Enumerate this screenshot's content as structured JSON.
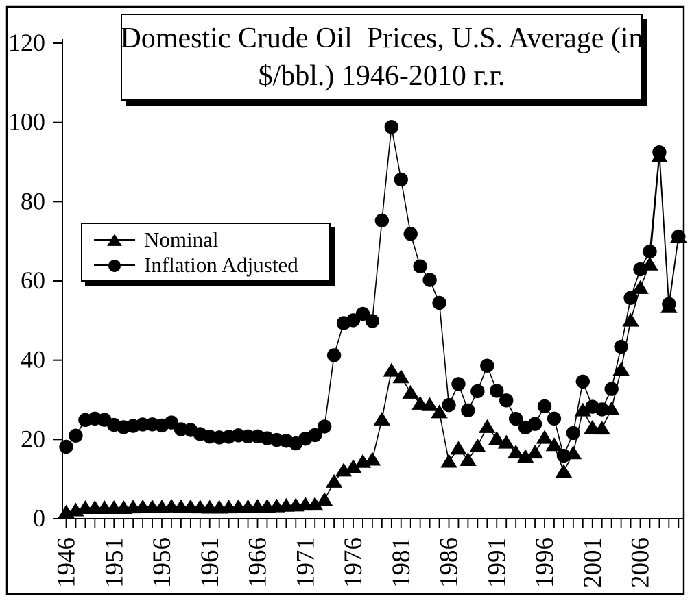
{
  "title": {
    "line1": "Domestic Crude Oil  Prices, U.S. Average (in",
    "line2": "$/bbl.) 1946-2010 г.г."
  },
  "legend": {
    "items": [
      {
        "label": "Nominal",
        "marker": "triangle"
      },
      {
        "label": "Inflation Adjusted",
        "marker": "circle"
      }
    ]
  },
  "chart_data": {
    "type": "line",
    "title": "Domestic Crude Oil  Prices, U.S. Average (in $/bbl.) 1946-2010 г.г.",
    "xlabel": "",
    "ylabel": "",
    "xlim": [
      1946,
      2010
    ],
    "ylim": [
      0,
      120
    ],
    "grid": false,
    "legend_position": "middle-left",
    "colors": {
      "foreground": "#000000",
      "background": "#ffffff"
    },
    "y_ticks": [
      0,
      20,
      40,
      60,
      80,
      100,
      120
    ],
    "x_tick_label_years": [
      1946,
      1951,
      1956,
      1961,
      1966,
      1971,
      1976,
      1981,
      1986,
      1991,
      1996,
      2001,
      2006
    ],
    "x": [
      1946,
      1947,
      1948,
      1949,
      1950,
      1951,
      1952,
      1953,
      1954,
      1955,
      1956,
      1957,
      1958,
      1959,
      1960,
      1961,
      1962,
      1963,
      1964,
      1965,
      1966,
      1967,
      1968,
      1969,
      1970,
      1971,
      1972,
      1973,
      1974,
      1975,
      1976,
      1977,
      1978,
      1979,
      1980,
      1981,
      1982,
      1983,
      1984,
      1985,
      1986,
      1987,
      1988,
      1989,
      1990,
      1991,
      1992,
      1993,
      1994,
      1995,
      1996,
      1997,
      1998,
      1999,
      2000,
      2001,
      2002,
      2003,
      2004,
      2005,
      2006,
      2007,
      2008,
      2009,
      2010
    ],
    "series": [
      {
        "name": "Nominal",
        "marker": "triangle",
        "values": [
          1.63,
          2.16,
          2.77,
          2.77,
          2.77,
          2.77,
          2.77,
          2.92,
          2.99,
          2.93,
          2.94,
          3.14,
          3.0,
          3.0,
          2.91,
          2.85,
          2.85,
          2.91,
          3.0,
          3.01,
          3.1,
          3.12,
          3.18,
          3.32,
          3.39,
          3.6,
          3.6,
          4.75,
          9.35,
          12.21,
          13.1,
          14.4,
          14.95,
          25.1,
          37.42,
          35.75,
          31.83,
          29.08,
          28.75,
          26.92,
          14.44,
          17.75,
          14.87,
          18.33,
          23.19,
          20.2,
          19.25,
          16.75,
          15.66,
          16.75,
          20.46,
          18.64,
          11.91,
          16.56,
          27.39,
          23.0,
          22.81,
          27.69,
          37.66,
          50.04,
          58.3,
          64.2,
          91.48,
          53.48,
          71.21
        ]
      },
      {
        "name": "Inflation Adjusted",
        "marker": "circle",
        "values": [
          18.17,
          20.97,
          24.93,
          25.27,
          24.98,
          23.67,
          23.09,
          23.41,
          23.79,
          23.8,
          23.52,
          24.29,
          22.58,
          22.4,
          21.37,
          20.72,
          20.51,
          20.67,
          21.04,
          20.77,
          20.79,
          20.3,
          19.87,
          19.67,
          19.0,
          20.2,
          21.1,
          23.27,
          41.25,
          49.37,
          50.08,
          51.7,
          49.9,
          75.25,
          98.86,
          85.59,
          71.87,
          63.68,
          60.25,
          54.47,
          28.68,
          34.0,
          27.36,
          32.17,
          38.61,
          32.27,
          29.86,
          25.23,
          23.0,
          23.92,
          28.38,
          25.27,
          15.9,
          21.63,
          34.62,
          28.26,
          27.59,
          32.74,
          43.4,
          55.73,
          62.93,
          67.42,
          92.48,
          54.18,
          71.21
        ]
      }
    ]
  }
}
